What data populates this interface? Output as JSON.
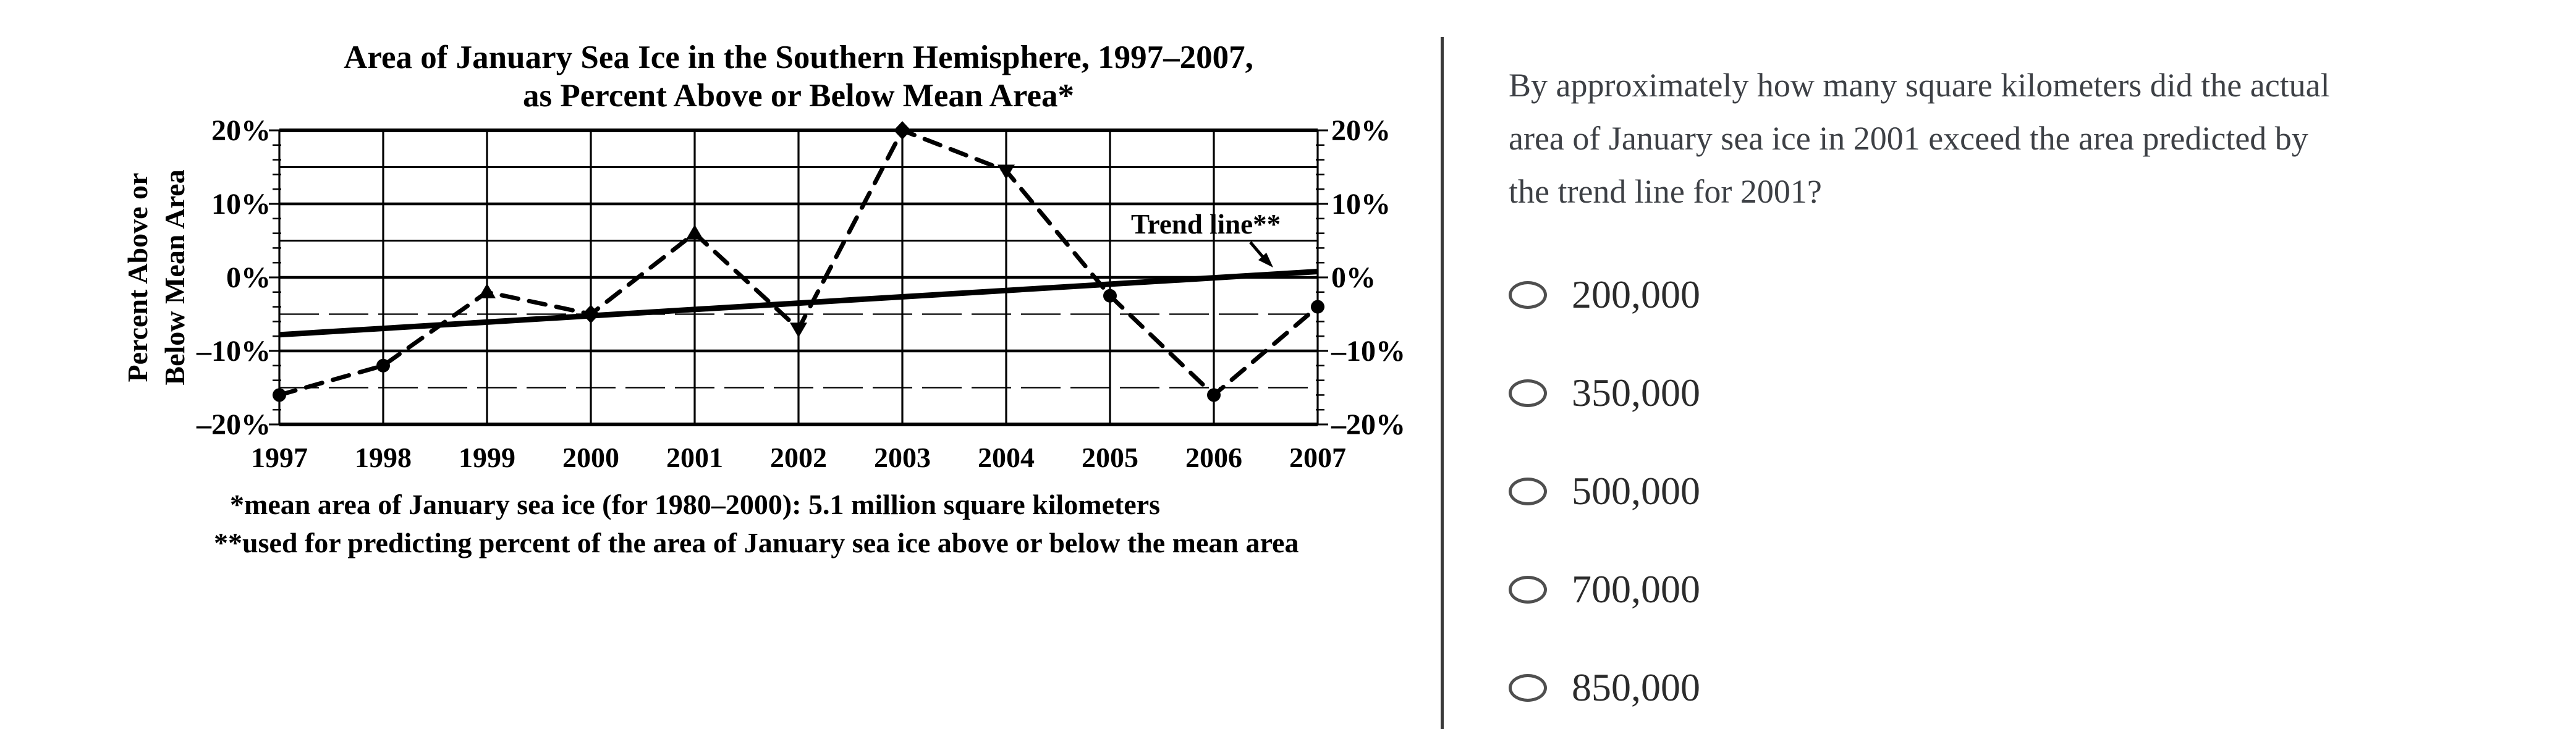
{
  "chart_data": {
    "type": "line",
    "title_line1": "Area of January Sea Ice in the Southern Hemisphere, 1997–2007,",
    "title_line2": "as Percent Above or Below Mean Area*",
    "ylabel_line1": "Percent Above or",
    "ylabel_line2": "Below Mean Area",
    "x": [
      1997,
      1998,
      1999,
      2000,
      2001,
      2002,
      2003,
      2004,
      2005,
      2006,
      2007
    ],
    "ylim": [
      -20,
      20
    ],
    "ytick_values": [
      20,
      10,
      0,
      -10,
      -20
    ],
    "ytick_labels": [
      "20%",
      "10%",
      "0%",
      "–10%",
      "–20%"
    ],
    "minor_ytick_values": [
      15,
      5,
      -5,
      -15
    ],
    "grid": true,
    "legend_position": "none",
    "series": [
      {
        "name": "Actual percent above or below mean area",
        "style": "dashed",
        "values": [
          -16,
          -12,
          -2,
          -5,
          6,
          -7,
          20,
          14.5,
          -2.5,
          -16,
          -4
        ],
        "marker_shapes": [
          "circle",
          "circle",
          "triangle-up",
          "diamond",
          "triangle-up",
          "triangle-down",
          "diamond",
          "triangle-down",
          "circle",
          "circle",
          "circle"
        ]
      },
      {
        "name": "Trend line",
        "style": "solid",
        "x": [
          1997,
          2007
        ],
        "values": [
          -7.8,
          0.8
        ]
      }
    ],
    "trend_label": "Trend line**",
    "footnote1": "*mean area of January sea ice (for 1980–2000): 5.1 million square kilometers",
    "footnote2": "**used for predicting percent of the area of January sea ice above or below the mean area"
  },
  "question": {
    "text": "By approximately how many square kilometers did the actual area of January sea ice in 2001 exceed the area predicted by the trend line for 2001?",
    "lines": [
      "By approximately how many square kilometers did the actual",
      "area of January sea ice in 2001 exceed the area predicted by",
      "the trend line for 2001?"
    ]
  },
  "options": [
    "200,000",
    "350,000",
    "500,000",
    "700,000",
    "850,000"
  ],
  "colors": {
    "chart_ink": "#000000",
    "question_text": "#3d4045",
    "option_text": "#2b2b2b",
    "radio_outline": "#4f4f4f",
    "divider": "#3a3a3a",
    "background": "#ffffff"
  }
}
